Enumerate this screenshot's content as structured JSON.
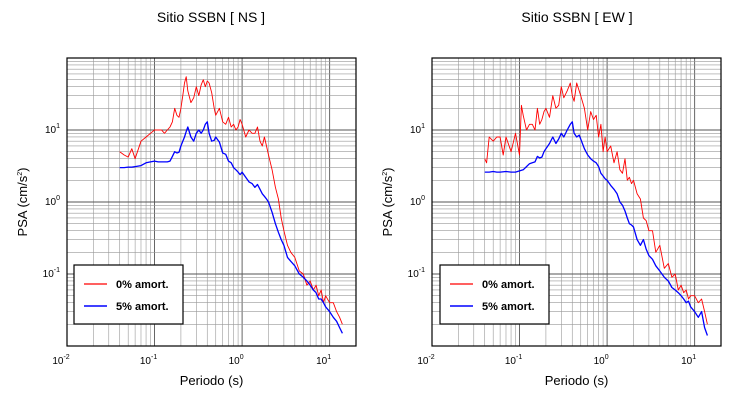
{
  "chart_data": [
    {
      "type": "line",
      "title": "Sitio SSBN [ NS ]",
      "xlabel": "Periodo (s)",
      "ylabel_base": "PSA (cm/s",
      "ylabel_exp": "2",
      "ylabel_close": ")",
      "x_scale": "log",
      "y_scale": "log",
      "xlim": [
        0.01,
        20
      ],
      "ylim": [
        0.01,
        100
      ],
      "grid": true,
      "legend_position": "bottom-left",
      "x_ticks": [
        {
          "base": "10",
          "exp": "-2",
          "value": 0.01
        },
        {
          "base": "10",
          "exp": "-1",
          "value": 0.1
        },
        {
          "base": "10",
          "exp": "0",
          "value": 1
        },
        {
          "base": "10",
          "exp": "1",
          "value": 10
        }
      ],
      "y_ticks": [
        {
          "base": "10",
          "exp": "-1",
          "value": 0.1
        },
        {
          "base": "10",
          "exp": "0",
          "value": 1
        },
        {
          "base": "10",
          "exp": "1",
          "value": 10
        }
      ],
      "series": [
        {
          "name": "0% amort.",
          "color": "#ff0000",
          "x": [
            0.04,
            0.045,
            0.05,
            0.055,
            0.06,
            0.07,
            0.08,
            0.09,
            0.1,
            0.11,
            0.12,
            0.13,
            0.14,
            0.15,
            0.16,
            0.17,
            0.18,
            0.19,
            0.2,
            0.21,
            0.22,
            0.23,
            0.24,
            0.26,
            0.28,
            0.3,
            0.32,
            0.34,
            0.36,
            0.38,
            0.4,
            0.42,
            0.45,
            0.48,
            0.5,
            0.55,
            0.6,
            0.65,
            0.7,
            0.75,
            0.8,
            0.85,
            0.9,
            0.95,
            1.0,
            1.1,
            1.2,
            1.3,
            1.4,
            1.5,
            1.6,
            1.7,
            1.8,
            1.9,
            2.0,
            2.2,
            2.4,
            2.6,
            2.8,
            3.0,
            3.3,
            3.6,
            4.0,
            4.5,
            5.0,
            5.5,
            6.0,
            6.5,
            7.0,
            7.5,
            8.0,
            8.5,
            9.0,
            10.0,
            11.0,
            12.0,
            13.0,
            14.0
          ],
          "y": [
            5,
            4.5,
            4.2,
            5.5,
            4,
            7,
            8,
            9,
            10,
            10,
            10,
            9,
            10,
            11,
            13,
            20,
            16,
            15,
            20,
            30,
            45,
            55,
            35,
            24,
            28,
            40,
            30,
            42,
            50,
            40,
            48,
            45,
            33,
            20,
            16,
            20,
            13,
            12,
            15,
            11,
            12,
            10,
            11,
            14,
            12,
            8,
            10,
            9,
            9,
            11,
            7,
            6,
            8,
            6,
            4.5,
            2.8,
            1.6,
            1.1,
            0.6,
            0.4,
            0.25,
            0.2,
            0.17,
            0.11,
            0.1,
            0.07,
            0.08,
            0.06,
            0.07,
            0.05,
            0.06,
            0.04,
            0.05,
            0.04,
            0.04,
            0.03,
            0.025,
            0.02
          ]
        },
        {
          "name": "5% amort.",
          "color": "#0000ff",
          "x": [
            0.04,
            0.045,
            0.05,
            0.055,
            0.06,
            0.07,
            0.08,
            0.09,
            0.1,
            0.11,
            0.12,
            0.13,
            0.14,
            0.15,
            0.16,
            0.17,
            0.18,
            0.19,
            0.2,
            0.21,
            0.22,
            0.23,
            0.24,
            0.26,
            0.28,
            0.3,
            0.32,
            0.34,
            0.36,
            0.38,
            0.4,
            0.42,
            0.45,
            0.48,
            0.5,
            0.55,
            0.6,
            0.65,
            0.7,
            0.75,
            0.8,
            0.85,
            0.9,
            0.95,
            1.0,
            1.1,
            1.2,
            1.3,
            1.4,
            1.5,
            1.6,
            1.7,
            1.8,
            1.9,
            2.0,
            2.2,
            2.4,
            2.6,
            2.8,
            3.0,
            3.3,
            3.6,
            4.0,
            4.5,
            5.0,
            5.5,
            6.0,
            6.5,
            7.0,
            7.5,
            8.0,
            8.5,
            9.0,
            10.0,
            11.0,
            12.0,
            13.0,
            14.0
          ],
          "y": [
            3,
            3,
            3.05,
            3.05,
            3.1,
            3.2,
            3.5,
            3.6,
            3.7,
            3.6,
            3.6,
            3.6,
            3.6,
            3.7,
            4.3,
            5,
            4.8,
            4.9,
            6,
            7,
            8,
            9.5,
            11,
            8,
            7,
            9,
            10,
            9,
            10,
            12,
            13,
            9,
            7,
            7.2,
            8,
            6.8,
            4.8,
            4.6,
            3.7,
            3.5,
            3.0,
            2.8,
            2.6,
            2.4,
            2.6,
            2.2,
            1.9,
            1.8,
            1.6,
            1.75,
            1.5,
            1.3,
            1.2,
            1.1,
            1.0,
            0.72,
            0.5,
            0.38,
            0.3,
            0.25,
            0.17,
            0.15,
            0.13,
            0.1,
            0.09,
            0.08,
            0.07,
            0.06,
            0.055,
            0.045,
            0.045,
            0.04,
            0.035,
            0.03,
            0.025,
            0.022,
            0.018,
            0.015
          ]
        }
      ]
    },
    {
      "type": "line",
      "title": "Sitio SSBN [ EW ]",
      "xlabel": "Periodo (s)",
      "ylabel_base": "PSA (cm/s",
      "ylabel_exp": "2",
      "ylabel_close": ")",
      "x_scale": "log",
      "y_scale": "log",
      "xlim": [
        0.01,
        20
      ],
      "ylim": [
        0.01,
        100
      ],
      "grid": true,
      "legend_position": "bottom-left",
      "x_ticks": [
        {
          "base": "10",
          "exp": "-2",
          "value": 0.01
        },
        {
          "base": "10",
          "exp": "-1",
          "value": 0.1
        },
        {
          "base": "10",
          "exp": "0",
          "value": 1
        },
        {
          "base": "10",
          "exp": "1",
          "value": 10
        }
      ],
      "y_ticks": [
        {
          "base": "10",
          "exp": "-1",
          "value": 0.1
        },
        {
          "base": "10",
          "exp": "0",
          "value": 1
        },
        {
          "base": "10",
          "exp": "1",
          "value": 10
        }
      ],
      "series": [
        {
          "name": "0% amort.",
          "color": "#ff0000",
          "x": [
            0.04,
            0.042,
            0.045,
            0.05,
            0.055,
            0.06,
            0.065,
            0.07,
            0.08,
            0.09,
            0.1,
            0.105,
            0.11,
            0.12,
            0.13,
            0.14,
            0.15,
            0.16,
            0.17,
            0.18,
            0.19,
            0.2,
            0.22,
            0.24,
            0.26,
            0.28,
            0.3,
            0.32,
            0.35,
            0.38,
            0.4,
            0.42,
            0.45,
            0.5,
            0.55,
            0.6,
            0.65,
            0.7,
            0.75,
            0.8,
            0.85,
            0.9,
            0.95,
            1.0,
            1.1,
            1.2,
            1.3,
            1.4,
            1.5,
            1.6,
            1.7,
            1.8,
            1.9,
            2.0,
            2.2,
            2.4,
            2.6,
            2.8,
            3.0,
            3.3,
            3.6,
            4.0,
            4.5,
            5.0,
            5.5,
            6.0,
            6.5,
            7.0,
            7.5,
            8.0,
            8.5,
            9.0,
            10.0,
            11.0,
            12.0,
            13.0,
            14.0
          ],
          "y": [
            4,
            3.5,
            8,
            7,
            8,
            8,
            4.5,
            8,
            5,
            9,
            4.5,
            22,
            16,
            10,
            12,
            12,
            10,
            20,
            12,
            14,
            18,
            20,
            15,
            30,
            20,
            22,
            40,
            28,
            35,
            45,
            30,
            25,
            45,
            30,
            20,
            10,
            18,
            14,
            16,
            8,
            12,
            5,
            8,
            5,
            6,
            3.5,
            5,
            2.8,
            2.5,
            4,
            2,
            2.2,
            1.8,
            2.0,
            1.3,
            1.1,
            0.6,
            0.55,
            0.4,
            0.4,
            0.2,
            0.25,
            0.12,
            0.14,
            0.09,
            0.1,
            0.06,
            0.07,
            0.055,
            0.06,
            0.045,
            0.05,
            0.05,
            0.04,
            0.045,
            0.03,
            0.02
          ]
        },
        {
          "name": "5% amort.",
          "color": "#0000ff",
          "x": [
            0.04,
            0.045,
            0.05,
            0.055,
            0.06,
            0.07,
            0.08,
            0.09,
            0.1,
            0.11,
            0.12,
            0.13,
            0.14,
            0.15,
            0.16,
            0.17,
            0.18,
            0.19,
            0.2,
            0.22,
            0.24,
            0.26,
            0.28,
            0.3,
            0.32,
            0.35,
            0.38,
            0.4,
            0.42,
            0.45,
            0.48,
            0.5,
            0.55,
            0.6,
            0.65,
            0.7,
            0.75,
            0.8,
            0.85,
            0.9,
            0.95,
            1.0,
            1.1,
            1.2,
            1.3,
            1.4,
            1.5,
            1.6,
            1.7,
            1.8,
            1.9,
            2.0,
            2.2,
            2.4,
            2.6,
            2.8,
            3.0,
            3.3,
            3.6,
            4.0,
            4.5,
            5.0,
            5.5,
            6.0,
            6.5,
            7.0,
            7.5,
            8.0,
            8.5,
            9.0,
            10.0,
            11.0,
            12.0,
            13.0,
            14.0
          ],
          "y": [
            2.6,
            2.6,
            2.65,
            2.6,
            2.6,
            2.65,
            2.6,
            2.6,
            2.7,
            2.8,
            3.1,
            3.4,
            3.5,
            3.6,
            4.3,
            4.1,
            4.2,
            5,
            5.5,
            6.5,
            8,
            6.5,
            7.5,
            9,
            8,
            10,
            12,
            13,
            9,
            8,
            8.5,
            7.5,
            5.5,
            4.5,
            4,
            3.7,
            3.5,
            3.1,
            2.5,
            2.3,
            2.1,
            2.0,
            1.7,
            1.5,
            1.3,
            1.0,
            0.9,
            0.75,
            0.6,
            0.5,
            0.48,
            0.45,
            0.3,
            0.25,
            0.3,
            0.22,
            0.18,
            0.16,
            0.13,
            0.11,
            0.09,
            0.08,
            0.065,
            0.06,
            0.055,
            0.05,
            0.045,
            0.04,
            0.042,
            0.035,
            0.03,
            0.025,
            0.03,
            0.018,
            0.014
          ]
        }
      ]
    }
  ]
}
